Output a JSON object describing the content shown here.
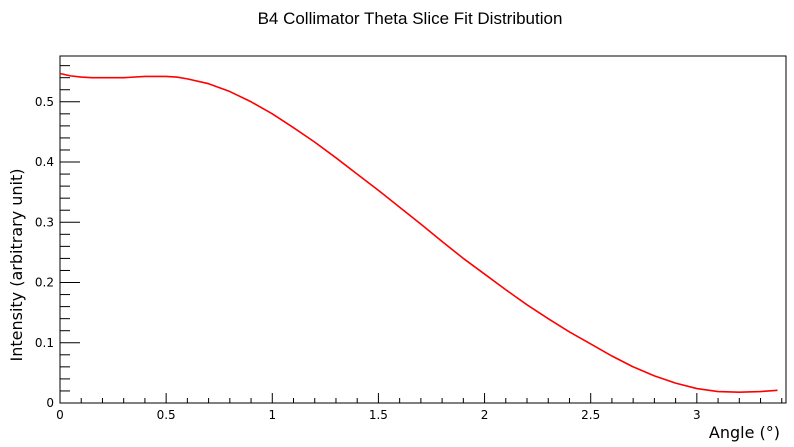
{
  "chart_data": {
    "type": "line",
    "title": "B4 Collimator Theta Slice Fit Distribution",
    "xlabel": "Angle (°)",
    "ylabel": "Intensity (arbitrary unit)",
    "xlim": [
      0,
      3.42
    ],
    "ylim": [
      0,
      0.576
    ],
    "x_ticks": [
      0,
      0.5,
      1,
      1.5,
      2,
      2.5,
      3
    ],
    "x_tick_labels": [
      "0",
      "0.5",
      "1",
      "1.5",
      "2",
      "2.5",
      "3"
    ],
    "x_minor_step": 0.1,
    "y_ticks": [
      0,
      0.1,
      0.2,
      0.3,
      0.4,
      0.5
    ],
    "y_tick_labels": [
      "0",
      "0.1",
      "0.2",
      "0.3",
      "0.4",
      "0.5"
    ],
    "y_minor_step": 0.02,
    "grid": false,
    "legend": "none",
    "series": [
      {
        "color": "#ff0000",
        "x": [
          0.0,
          0.05,
          0.1,
          0.15,
          0.2,
          0.3,
          0.4,
          0.45,
          0.5,
          0.55,
          0.6,
          0.7,
          0.8,
          0.9,
          1.0,
          1.1,
          1.2,
          1.3,
          1.4,
          1.5,
          1.6,
          1.7,
          1.8,
          1.9,
          2.0,
          2.1,
          2.2,
          2.3,
          2.4,
          2.5,
          2.6,
          2.7,
          2.8,
          2.9,
          3.0,
          3.1,
          3.2,
          3.3,
          3.38
        ],
        "y": [
          0.547,
          0.543,
          0.541,
          0.54,
          0.54,
          0.54,
          0.542,
          0.542,
          0.542,
          0.541,
          0.538,
          0.53,
          0.517,
          0.5,
          0.48,
          0.457,
          0.433,
          0.407,
          0.38,
          0.353,
          0.325,
          0.297,
          0.268,
          0.24,
          0.214,
          0.188,
          0.163,
          0.14,
          0.118,
          0.098,
          0.078,
          0.06,
          0.045,
          0.033,
          0.024,
          0.019,
          0.018,
          0.019,
          0.021
        ]
      }
    ]
  }
}
